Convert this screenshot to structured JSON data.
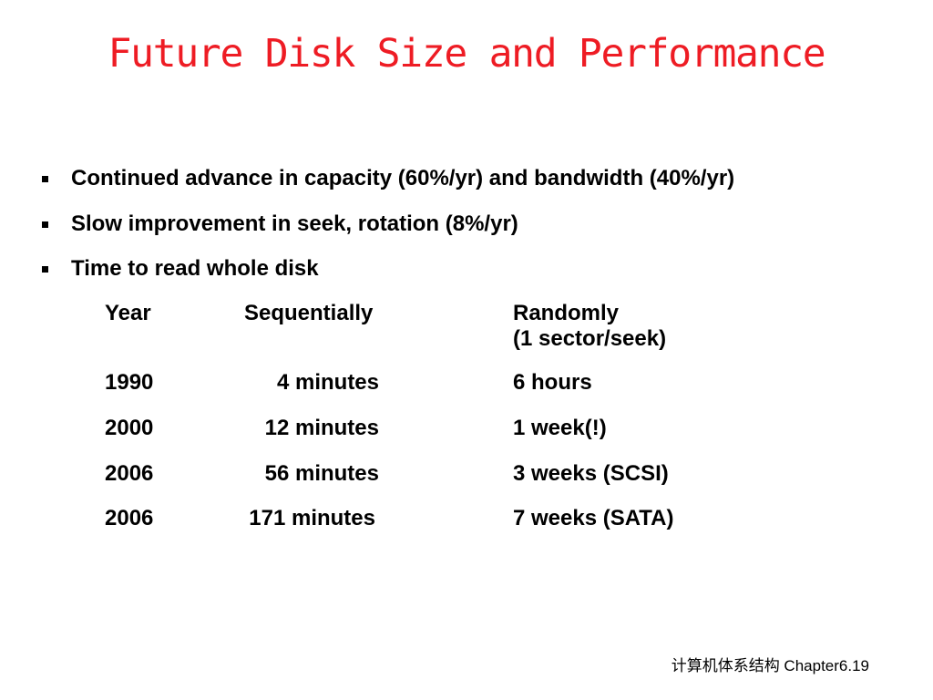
{
  "slide": {
    "title": "Future Disk Size and Performance",
    "title_color": "#ee1c24",
    "bullet_icon": "square-bullet-icon",
    "bullets": [
      "Continued advance in capacity (60%/yr) and bandwidth (40%/yr)",
      "Slow improvement in seek, rotation (8%/yr)",
      "Time to read whole disk"
    ],
    "table": {
      "headers": {
        "year": "Year",
        "sequentially": "Sequentially",
        "randomly": "Randomly",
        "randomly_sub": "(1 sector/seek)"
      },
      "rows": [
        {
          "year": "1990",
          "sequentially": "4 minutes",
          "randomly": "6 hours"
        },
        {
          "year": "2000",
          "sequentially": "12 minutes",
          "randomly": "1 week(!)"
        },
        {
          "year": "2006",
          "sequentially": "56 minutes",
          "randomly": "3 weeks (SCSI)"
        },
        {
          "year": "2006",
          "sequentially": "171 minutes",
          "randomly": "7 weeks (SATA)"
        }
      ]
    },
    "footer": "计算机体系结构 Chapter6.19"
  }
}
